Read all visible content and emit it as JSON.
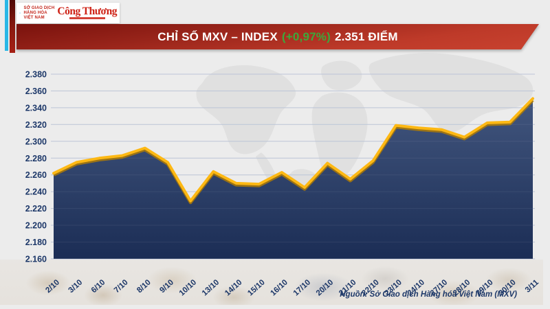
{
  "header": {
    "logo": {
      "exchange_name_lines": [
        "SỞ GIAO DỊCH",
        "HÀNG HÓA",
        "VIỆT NAM"
      ],
      "newspaper_masthead": "Công Thương",
      "chevron_color": "#29B7E6",
      "text_color": "#C3251A"
    },
    "banner": {
      "title": "CHỈ SỐ MXV – INDEX",
      "change": "(+0,97%)",
      "value": "2.351 ĐIỂM",
      "change_color": "#3BA93B",
      "background_color": "#B02E1F"
    }
  },
  "chart_data": {
    "type": "area",
    "title": "CHỈ SỐ MXV – INDEX (+0,97%) 2.351 ĐIỂM",
    "categories": [
      "2/10",
      "3/10",
      "6/10",
      "7/10",
      "8/10",
      "9/10",
      "10/10",
      "13/10",
      "14/10",
      "15/10",
      "16/10",
      "17/10",
      "20/10",
      "21/10",
      "22/10",
      "23/10",
      "24/10",
      "27/10",
      "28/10",
      "29/10",
      "30/10",
      "3/11"
    ],
    "values": [
      2.262,
      2.275,
      2.28,
      2.283,
      2.292,
      2.275,
      2.229,
      2.264,
      2.25,
      2.249,
      2.263,
      2.245,
      2.274,
      2.255,
      2.277,
      2.319,
      2.316,
      2.314,
      2.305,
      2.322,
      2.323,
      2.351
    ],
    "ylim": [
      2.16,
      2.38
    ],
    "ytick_step": 0.02,
    "ytick_labels": [
      "2.380",
      "2.360",
      "2.340",
      "2.320",
      "2.300",
      "2.280",
      "2.260",
      "2.240",
      "2.220",
      "2.200",
      "2.180",
      "2.160"
    ],
    "xlabel": "",
    "ylabel": "",
    "grid": true,
    "legend": "none",
    "line_color": "#FDB813",
    "line_shadow_color": "#B57E00",
    "area_gradient_top": "#42567E",
    "area_gradient_bottom": "#1B2D55",
    "gridline_color": "#B7C1D4",
    "tick_label_color": "#1D3869"
  },
  "footer": {
    "source": "Nguồn: Sở Giao dịch Hàng hóa Việt Nam (MXV)"
  }
}
